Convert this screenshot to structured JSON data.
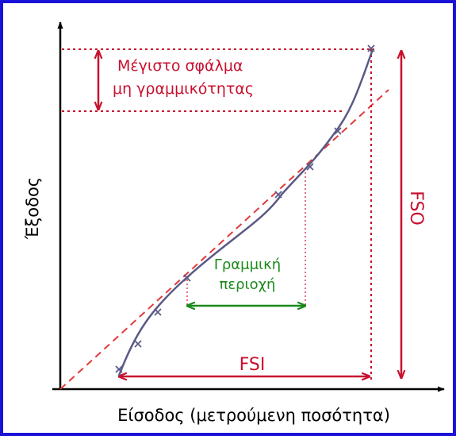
{
  "axes": {
    "x_label": "Είσοδος (μετρούμενη ποσότητα)",
    "y_label": "Έξοδος"
  },
  "annotations": {
    "max_error_line1": "Μέγιστο σφάλμα",
    "max_error_line2": "μη γραμμικότητας",
    "linear_region_line1": "Γραμμική",
    "linear_region_line2": "περιοχή",
    "fsi": "FSI",
    "fso": "FSO"
  },
  "colors": {
    "frame": "#1a12d6",
    "axis": "#000000",
    "curve": "#5a5a86",
    "ideal_line": "#e23a3a",
    "annotation_red": "#c8102e",
    "annotation_green": "#1b8a1b"
  }
}
